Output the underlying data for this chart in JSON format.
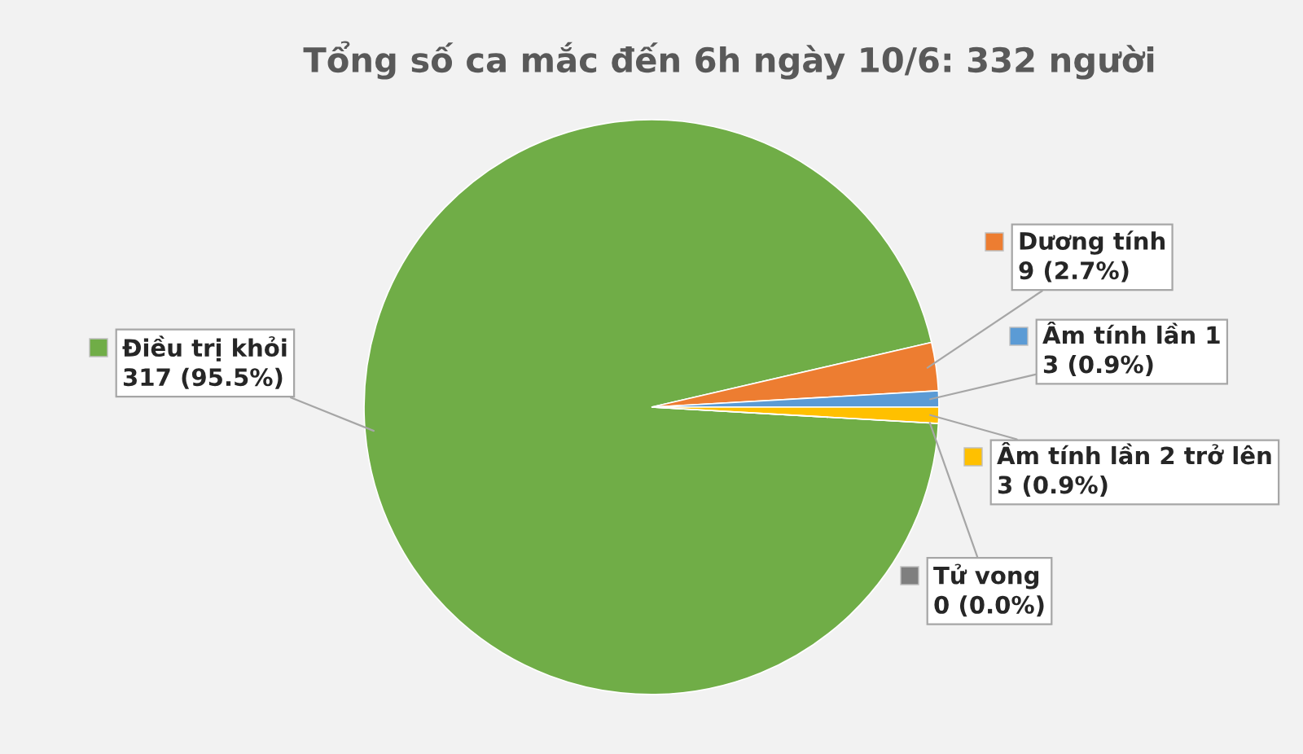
{
  "chart_data": {
    "type": "pie",
    "title": "Tổng số ca mắc đến 6h ngày 10/6: 332 người",
    "categories": [
      "Điều trị khỏi",
      "Dương tính",
      "Âm tính lần 1",
      "Âm tính lần 2 trở lên",
      "Tử vong"
    ],
    "values": [
      317,
      9,
      3,
      3,
      0
    ],
    "value_labels": [
      "317 (95.5%)",
      "9 (2.7%)",
      "3 (0.9%)",
      "3 (0.9%)",
      "0 (0.0%)"
    ],
    "colors": [
      "#70ad47",
      "#ed7d31",
      "#5b9bd5",
      "#ffc000",
      "#7f7f7f"
    ],
    "legend": "right"
  }
}
